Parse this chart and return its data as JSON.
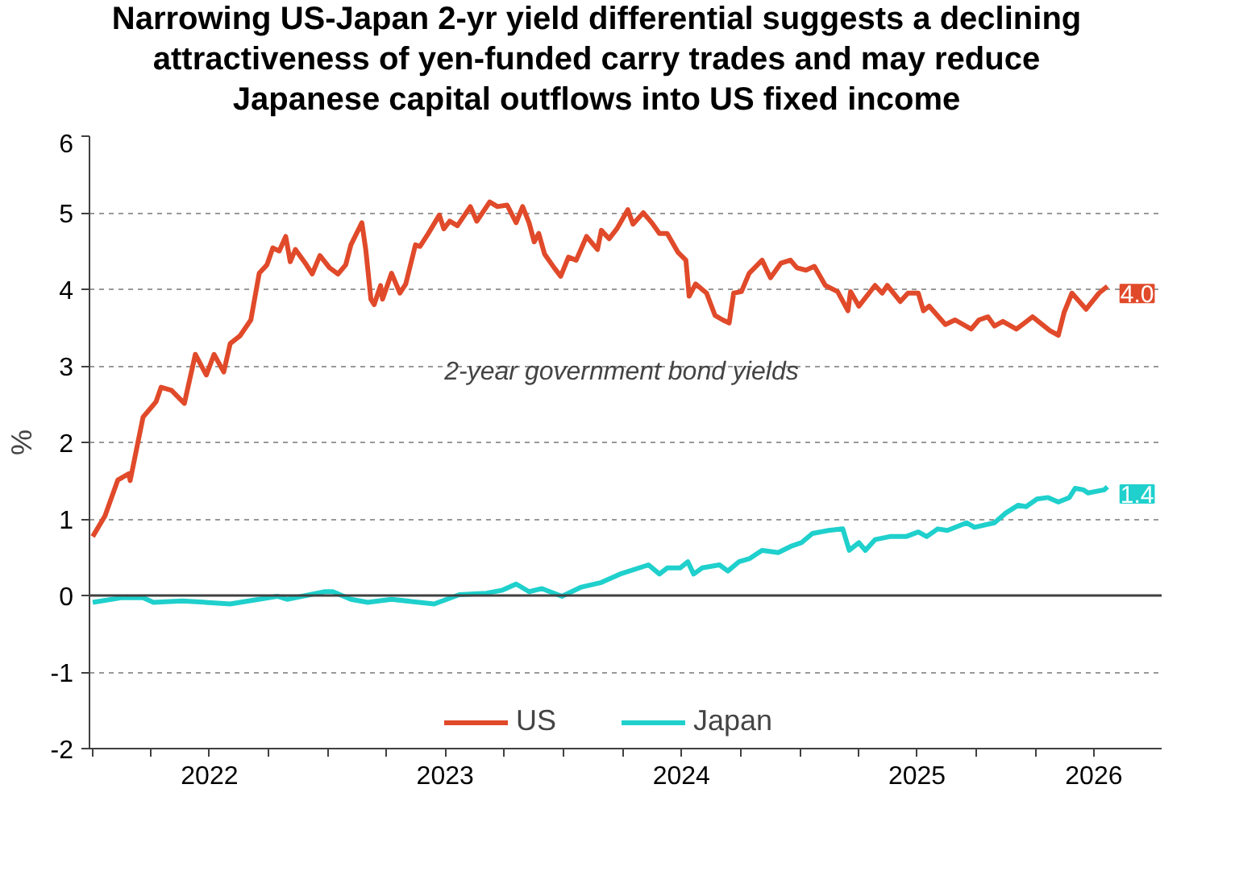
{
  "chart_data": {
    "type": "line",
    "title": "Narrowing US-Japan 2-yr yield differential suggests a declining\nattractiveness of yen-funded carry  trades and may reduce\nJapanese capital outflows into US fixed income",
    "ylabel": "%",
    "annotations": [
      "2-year government bond yields"
    ],
    "xlim": [
      "2021-12-27",
      "2026-07-15"
    ],
    "xticks": [
      {
        "value": "2022-01-01",
        "label": null
      },
      {
        "value": "2022-04-01",
        "label": null
      },
      {
        "value": "2022-07-01",
        "label": "2022"
      },
      {
        "value": "2022-10-01",
        "label": null
      },
      {
        "value": "2023-01-01",
        "label": null
      },
      {
        "value": "2023-04-01",
        "label": null
      },
      {
        "value": "2023-07-01",
        "label": "2023"
      },
      {
        "value": "2023-10-01",
        "label": null
      },
      {
        "value": "2024-01-01",
        "label": null
      },
      {
        "value": "2024-04-01",
        "label": null
      },
      {
        "value": "2024-07-01",
        "label": "2024"
      },
      {
        "value": "2024-10-01",
        "label": null
      },
      {
        "value": "2025-01-01",
        "label": null
      },
      {
        "value": "2025-04-01",
        "label": null
      },
      {
        "value": "2025-07-01",
        "label": "2025"
      },
      {
        "value": "2025-10-01",
        "label": null
      },
      {
        "value": "2026-01-01",
        "label": null
      },
      {
        "value": "2026-04-01",
        "label": "2026"
      }
    ],
    "ylim": [
      -2,
      6
    ],
    "yticks": [
      -2,
      -1,
      0,
      1,
      2,
      3,
      4,
      5,
      6
    ],
    "grid": "y",
    "legend": "bottom",
    "marker": "none",
    "line_style": "solid",
    "ref_lines": [
      {
        "axis": "y",
        "value": 0,
        "color": "#404040",
        "line_style": "solid"
      }
    ],
    "series": [
      {
        "name": "US",
        "color": "#e04a2a",
        "x": [
          "2022-01-01",
          "2022-01-20",
          "2022-02-09",
          "2022-02-26",
          "2022-02-28",
          "2022-03-20",
          "2022-04-09",
          "2022-04-17",
          "2022-05-03",
          "2022-05-23",
          "2022-06-09",
          "2022-06-26",
          "2022-07-08",
          "2022-07-23",
          "2022-08-02",
          "2022-08-17",
          "2022-09-03",
          "2022-09-16",
          "2022-09-28",
          "2022-10-07",
          "2022-10-17",
          "2022-10-27",
          "2022-11-03",
          "2022-11-11",
          "2022-11-28",
          "2022-12-07",
          "2022-12-19",
          "2023-01-03",
          "2023-01-16",
          "2023-01-28",
          "2023-02-05",
          "2023-02-22",
          "2023-02-28",
          "2023-03-08",
          "2023-03-13",
          "2023-03-23",
          "2023-03-26",
          "2023-04-09",
          "2023-04-22",
          "2023-05-01",
          "2023-05-16",
          "2023-05-23",
          "2023-06-05",
          "2023-06-22",
          "2023-06-29",
          "2023-07-08",
          "2023-07-20",
          "2023-08-09",
          "2023-08-19",
          "2023-09-08",
          "2023-09-20",
          "2023-10-05",
          "2023-10-19",
          "2023-10-29",
          "2023-11-08",
          "2023-11-16",
          "2023-11-23",
          "2023-12-02",
          "2023-12-17",
          "2023-12-27",
          "2024-01-08",
          "2024-01-20",
          "2024-02-05",
          "2024-02-22",
          "2024-02-28",
          "2024-03-11",
          "2024-03-23",
          "2024-04-09",
          "2024-04-17",
          "2024-05-03",
          "2024-05-16",
          "2024-05-28",
          "2024-06-09",
          "2024-06-26",
          "2024-07-08",
          "2024-07-13",
          "2024-07-23",
          "2024-08-09",
          "2024-08-22",
          "2024-09-03",
          "2024-09-13",
          "2024-09-20",
          "2024-10-02",
          "2024-10-14",
          "2024-11-03",
          "2024-11-16",
          "2024-12-02",
          "2024-12-17",
          "2024-12-27",
          "2025-01-10",
          "2025-01-23",
          "2025-02-09",
          "2025-02-28",
          "2025-03-16",
          "2025-03-20",
          "2025-04-02",
          "2025-04-27",
          "2025-05-08",
          "2025-05-16",
          "2025-06-05",
          "2025-06-17",
          "2025-07-03",
          "2025-07-11",
          "2025-07-20",
          "2025-08-14",
          "2025-08-29",
          "2025-09-23",
          "2025-10-05",
          "2025-10-19",
          "2025-10-29",
          "2025-11-11",
          "2025-12-02",
          "2025-12-27",
          "2026-01-23",
          "2026-02-05",
          "2026-02-14",
          "2026-02-26",
          "2026-03-20",
          "2026-04-09",
          "2026-04-22"
        ],
        "values": [
          0.77,
          1.04,
          1.51,
          1.59,
          1.5,
          2.33,
          2.53,
          2.72,
          2.68,
          2.51,
          3.15,
          2.88,
          3.15,
          2.92,
          3.29,
          3.39,
          3.6,
          4.21,
          4.32,
          4.54,
          4.5,
          4.69,
          4.36,
          4.52,
          4.32,
          4.2,
          4.44,
          4.28,
          4.2,
          4.32,
          4.58,
          4.87,
          4.52,
          3.87,
          3.8,
          4.05,
          3.87,
          4.21,
          3.95,
          4.07,
          4.58,
          4.56,
          4.73,
          4.97,
          4.79,
          4.89,
          4.83,
          5.08,
          4.89,
          5.14,
          5.08,
          5.1,
          4.87,
          5.08,
          4.87,
          4.62,
          4.73,
          4.46,
          4.28,
          4.17,
          4.42,
          4.38,
          4.69,
          4.52,
          4.77,
          4.66,
          4.79,
          5.04,
          4.85,
          5.0,
          4.87,
          4.73,
          4.73,
          4.48,
          4.38,
          3.91,
          4.07,
          3.95,
          3.66,
          3.6,
          3.56,
          3.95,
          3.97,
          4.21,
          4.38,
          4.15,
          4.34,
          4.38,
          4.28,
          4.25,
          4.3,
          4.05,
          3.97,
          3.72,
          3.97,
          3.78,
          4.05,
          3.95,
          4.05,
          3.84,
          3.95,
          3.95,
          3.72,
          3.78,
          3.54,
          3.6,
          3.48,
          3.6,
          3.64,
          3.52,
          3.58,
          3.48,
          3.64,
          3.46,
          3.4,
          3.7,
          3.95,
          3.74,
          3.95,
          4.04
        ],
        "value_labels": [
          null,
          null,
          null,
          null,
          null,
          null,
          null,
          null,
          null,
          null,
          null,
          null,
          null,
          null,
          null,
          null,
          null,
          null,
          null,
          null,
          null,
          null,
          null,
          null,
          null,
          null,
          null,
          null,
          null,
          null,
          null,
          null,
          null,
          null,
          null,
          null,
          null,
          null,
          null,
          null,
          null,
          null,
          null,
          null,
          null,
          null,
          null,
          null,
          null,
          null,
          null,
          null,
          null,
          null,
          null,
          null,
          null,
          null,
          null,
          null,
          null,
          null,
          null,
          null,
          null,
          null,
          null,
          null,
          null,
          null,
          null,
          null,
          null,
          null,
          null,
          null,
          null,
          null,
          null,
          null,
          null,
          null,
          null,
          null,
          null,
          null,
          null,
          null,
          null,
          null,
          null,
          null,
          null,
          null,
          null,
          null,
          null,
          null,
          null,
          null,
          null,
          null,
          null,
          null,
          null,
          null,
          null,
          null,
          null,
          null,
          null,
          null,
          null,
          null,
          null,
          null,
          null,
          null,
          null,
          "4.0"
        ]
      },
      {
        "name": "Japan",
        "color": "#1fd0cc",
        "x": [
          "2022-01-01",
          "2022-02-14",
          "2022-03-20",
          "2022-04-05",
          "2022-05-20",
          "2022-08-02",
          "2022-10-14",
          "2022-10-29",
          "2022-12-27",
          "2023-01-08",
          "2023-02-05",
          "2023-03-03",
          "2023-04-09",
          "2023-06-14",
          "2023-07-23",
          "2023-09-03",
          "2023-09-28",
          "2023-10-19",
          "2023-11-08",
          "2023-11-28",
          "2023-12-29",
          "2024-01-28",
          "2024-02-28",
          "2024-03-28",
          "2024-05-11",
          "2024-05-28",
          "2024-06-09",
          "2024-06-29",
          "2024-07-11",
          "2024-07-20",
          "2024-08-02",
          "2024-08-29",
          "2024-09-11",
          "2024-09-28",
          "2024-10-14",
          "2024-11-03",
          "2024-11-28",
          "2024-12-17",
          "2025-01-03",
          "2025-01-20",
          "2025-02-14",
          "2025-03-08",
          "2025-03-18",
          "2025-04-02",
          "2025-04-12",
          "2025-04-27",
          "2025-05-20",
          "2025-06-14",
          "2025-07-03",
          "2025-07-16",
          "2025-08-02",
          "2025-08-17",
          "2025-09-16",
          "2025-09-28",
          "2025-10-29",
          "2025-11-16",
          "2025-12-05",
          "2025-12-17",
          "2026-01-03",
          "2026-01-20",
          "2026-02-05",
          "2026-02-22",
          "2026-03-03",
          "2026-03-16",
          "2026-03-23",
          "2026-04-17",
          "2026-04-22"
        ],
        "values": [
          -0.09,
          -0.03,
          -0.03,
          -0.09,
          -0.07,
          -0.11,
          -0.01,
          -0.05,
          0.05,
          0.05,
          -0.05,
          -0.09,
          -0.05,
          -0.11,
          0.01,
          0.03,
          0.07,
          0.15,
          0.05,
          0.09,
          -0.01,
          0.11,
          0.17,
          0.28,
          0.4,
          0.28,
          0.36,
          0.36,
          0.44,
          0.28,
          0.36,
          0.4,
          0.32,
          0.44,
          0.48,
          0.59,
          0.56,
          0.64,
          0.69,
          0.81,
          0.85,
          0.87,
          0.59,
          0.69,
          0.59,
          0.73,
          0.77,
          0.77,
          0.83,
          0.77,
          0.87,
          0.85,
          0.95,
          0.89,
          0.95,
          1.08,
          1.18,
          1.16,
          1.26,
          1.28,
          1.22,
          1.28,
          1.4,
          1.38,
          1.34,
          1.38,
          1.42
        ],
        "value_labels": [
          null,
          null,
          null,
          null,
          null,
          null,
          null,
          null,
          null,
          null,
          null,
          null,
          null,
          null,
          null,
          null,
          null,
          null,
          null,
          null,
          null,
          null,
          null,
          null,
          null,
          null,
          null,
          null,
          null,
          null,
          null,
          null,
          null,
          null,
          null,
          null,
          null,
          null,
          null,
          null,
          null,
          null,
          null,
          null,
          null,
          null,
          null,
          null,
          null,
          null,
          null,
          null,
          null,
          null,
          null,
          null,
          null,
          null,
          null,
          null,
          null,
          null,
          null,
          null,
          null,
          null,
          "1.4"
        ]
      }
    ]
  }
}
